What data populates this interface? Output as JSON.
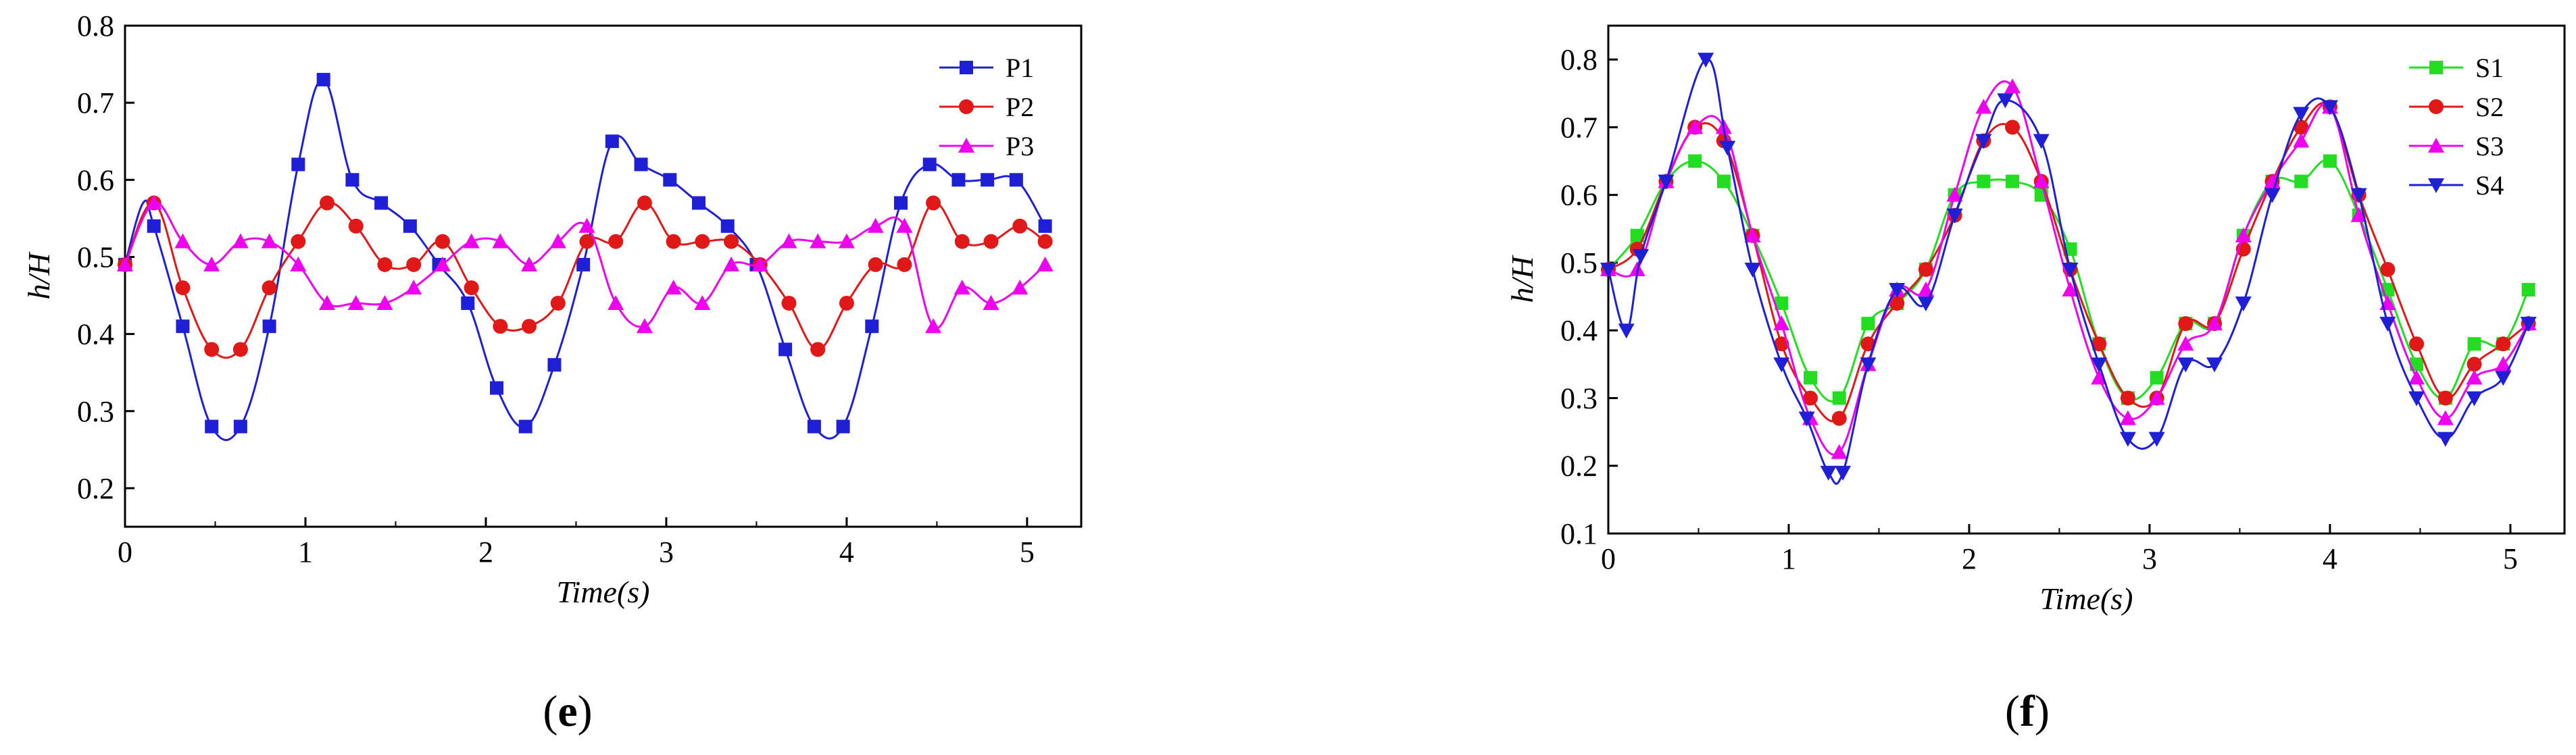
{
  "chart_data": [
    {
      "id": "e",
      "type": "line",
      "caption_letter": "e",
      "xlabel": "Time(s)",
      "ylabel": "h/H",
      "xlim": [
        0,
        5.3
      ],
      "ylim": [
        0.15,
        0.8
      ],
      "xticks": [
        0,
        1,
        2,
        3,
        4,
        5
      ],
      "yticks": [
        0.2,
        0.3,
        0.4,
        0.5,
        0.6,
        0.7,
        0.8
      ],
      "legend_position": "top-right",
      "series": [
        {
          "name": "P1",
          "color": "#1f1fd6",
          "marker": "square",
          "x": [
            0,
            0.1,
            0.16,
            0.32,
            0.48,
            0.64,
            0.8,
            0.96,
            1.1,
            1.26,
            1.42,
            1.58,
            1.74,
            1.9,
            2.06,
            2.22,
            2.38,
            2.54,
            2.7,
            2.86,
            3.02,
            3.18,
            3.34,
            3.5,
            3.66,
            3.82,
            3.98,
            4.14,
            4.3,
            4.46,
            4.62,
            4.78,
            4.94,
            5.1
          ],
          "y": [
            0.49,
            0.57,
            0.54,
            0.41,
            0.28,
            0.28,
            0.41,
            0.62,
            0.73,
            0.6,
            0.57,
            0.54,
            0.49,
            0.44,
            0.33,
            0.28,
            0.36,
            0.49,
            0.65,
            0.62,
            0.6,
            0.57,
            0.54,
            0.49,
            0.38,
            0.28,
            0.28,
            0.41,
            0.57,
            0.62,
            0.6,
            0.6,
            0.6,
            0.54
          ],
          "markers_x": [
            0,
            0.16,
            0.32,
            0.48,
            0.64,
            0.8,
            0.96,
            1.1,
            1.26,
            1.42,
            1.58,
            1.74,
            1.9,
            2.06,
            2.22,
            2.38,
            2.54,
            2.7,
            2.86,
            3.02,
            3.18,
            3.34,
            3.5,
            3.66,
            3.82,
            3.98,
            4.14,
            4.3,
            4.46,
            4.62,
            4.78,
            4.94,
            5.1
          ]
        },
        {
          "name": "P2",
          "color": "#e01818",
          "marker": "circle",
          "x": [
            0,
            0.16,
            0.32,
            0.48,
            0.64,
            0.8,
            0.96,
            1.12,
            1.28,
            1.44,
            1.6,
            1.76,
            1.92,
            2.08,
            2.24,
            2.4,
            2.56,
            2.72,
            2.88,
            3.04,
            3.2,
            3.36,
            3.52,
            3.68,
            3.84,
            4.0,
            4.16,
            4.32,
            4.48,
            4.64,
            4.8,
            4.96,
            5.1
          ],
          "y": [
            0.49,
            0.57,
            0.46,
            0.38,
            0.38,
            0.46,
            0.52,
            0.57,
            0.54,
            0.49,
            0.49,
            0.52,
            0.46,
            0.41,
            0.41,
            0.44,
            0.52,
            0.52,
            0.57,
            0.52,
            0.52,
            0.52,
            0.49,
            0.44,
            0.38,
            0.44,
            0.49,
            0.49,
            0.57,
            0.52,
            0.52,
            0.54,
            0.52
          ]
        },
        {
          "name": "P3",
          "color": "#ee00ee",
          "marker": "triangle-up",
          "x": [
            0,
            0.16,
            0.32,
            0.48,
            0.64,
            0.8,
            0.96,
            1.12,
            1.28,
            1.44,
            1.6,
            1.76,
            1.92,
            2.08,
            2.24,
            2.4,
            2.56,
            2.72,
            2.88,
            3.04,
            3.2,
            3.36,
            3.52,
            3.68,
            3.84,
            4.0,
            4.16,
            4.32,
            4.48,
            4.64,
            4.8,
            4.96,
            5.1
          ],
          "y": [
            0.49,
            0.57,
            0.52,
            0.49,
            0.52,
            0.52,
            0.49,
            0.44,
            0.44,
            0.44,
            0.46,
            0.49,
            0.52,
            0.52,
            0.49,
            0.52,
            0.54,
            0.44,
            0.41,
            0.46,
            0.44,
            0.49,
            0.49,
            0.52,
            0.52,
            0.52,
            0.54,
            0.54,
            0.41,
            0.46,
            0.44,
            0.46,
            0.49
          ]
        }
      ]
    },
    {
      "id": "f",
      "type": "line",
      "caption_letter": "f",
      "xlabel": "Time(s)",
      "ylabel": "h/H",
      "xlim": [
        0,
        5.3
      ],
      "ylim": [
        0.1,
        0.85
      ],
      "xticks": [
        0,
        1,
        2,
        3,
        4,
        5
      ],
      "yticks": [
        0.1,
        0.2,
        0.3,
        0.4,
        0.5,
        0.6,
        0.7,
        0.8
      ],
      "legend_position": "top-right",
      "series": [
        {
          "name": "S1",
          "color": "#22dd22",
          "marker": "square",
          "x": [
            0,
            0.16,
            0.32,
            0.48,
            0.64,
            0.8,
            0.96,
            1.12,
            1.28,
            1.44,
            1.6,
            1.76,
            1.92,
            2.08,
            2.24,
            2.4,
            2.56,
            2.72,
            2.88,
            3.04,
            3.2,
            3.36,
            3.52,
            3.68,
            3.84,
            4.0,
            4.16,
            4.32,
            4.48,
            4.64,
            4.8,
            4.96,
            5.1
          ],
          "y": [
            0.49,
            0.54,
            0.62,
            0.65,
            0.62,
            0.54,
            0.44,
            0.33,
            0.3,
            0.41,
            0.44,
            0.49,
            0.6,
            0.62,
            0.62,
            0.6,
            0.52,
            0.38,
            0.3,
            0.33,
            0.41,
            0.41,
            0.54,
            0.62,
            0.62,
            0.65,
            0.57,
            0.46,
            0.35,
            0.3,
            0.38,
            0.38,
            0.46
          ]
        },
        {
          "name": "S2",
          "color": "#e01818",
          "marker": "circle",
          "x": [
            0,
            0.16,
            0.32,
            0.48,
            0.64,
            0.8,
            0.96,
            1.12,
            1.28,
            1.44,
            1.6,
            1.76,
            1.92,
            2.08,
            2.24,
            2.4,
            2.56,
            2.72,
            2.88,
            3.04,
            3.2,
            3.36,
            3.52,
            3.68,
            3.84,
            4.0,
            4.16,
            4.32,
            4.48,
            4.64,
            4.8,
            4.96,
            5.1
          ],
          "y": [
            0.49,
            0.52,
            0.62,
            0.7,
            0.68,
            0.54,
            0.38,
            0.3,
            0.27,
            0.38,
            0.44,
            0.49,
            0.57,
            0.68,
            0.7,
            0.62,
            0.49,
            0.38,
            0.3,
            0.3,
            0.41,
            0.41,
            0.52,
            0.62,
            0.7,
            0.73,
            0.6,
            0.49,
            0.38,
            0.3,
            0.35,
            0.38,
            0.41
          ]
        },
        {
          "name": "S3",
          "color": "#ee00ee",
          "marker": "triangle-up",
          "x": [
            0,
            0.16,
            0.32,
            0.48,
            0.64,
            0.8,
            0.96,
            1.12,
            1.28,
            1.44,
            1.6,
            1.76,
            1.92,
            2.08,
            2.24,
            2.4,
            2.56,
            2.72,
            2.88,
            3.04,
            3.2,
            3.36,
            3.52,
            3.68,
            3.84,
            4.0,
            4.16,
            4.32,
            4.48,
            4.64,
            4.8,
            4.96,
            5.1
          ],
          "y": [
            0.49,
            0.49,
            0.62,
            0.7,
            0.7,
            0.54,
            0.41,
            0.27,
            0.22,
            0.35,
            0.46,
            0.46,
            0.6,
            0.73,
            0.76,
            0.62,
            0.46,
            0.33,
            0.27,
            0.3,
            0.38,
            0.41,
            0.54,
            0.62,
            0.68,
            0.73,
            0.57,
            0.44,
            0.33,
            0.27,
            0.33,
            0.35,
            0.41
          ]
        },
        {
          "name": "S4",
          "color": "#1f1fd6",
          "marker": "triangle-down",
          "x": [
            0,
            0.1,
            0.18,
            0.32,
            0.54,
            0.66,
            0.8,
            0.96,
            1.1,
            1.22,
            1.3,
            1.44,
            1.6,
            1.76,
            1.92,
            2.08,
            2.2,
            2.4,
            2.56,
            2.72,
            2.88,
            3.04,
            3.2,
            3.36,
            3.52,
            3.68,
            3.84,
            4.0,
            4.16,
            4.32,
            4.48,
            4.64,
            4.8,
            4.96,
            5.1
          ],
          "y": [
            0.49,
            0.4,
            0.51,
            0.62,
            0.8,
            0.67,
            0.49,
            0.35,
            0.27,
            0.19,
            0.19,
            0.35,
            0.46,
            0.44,
            0.57,
            0.68,
            0.74,
            0.68,
            0.49,
            0.35,
            0.24,
            0.24,
            0.35,
            0.35,
            0.44,
            0.6,
            0.72,
            0.73,
            0.6,
            0.41,
            0.3,
            0.24,
            0.3,
            0.33,
            0.41
          ]
        }
      ]
    }
  ]
}
